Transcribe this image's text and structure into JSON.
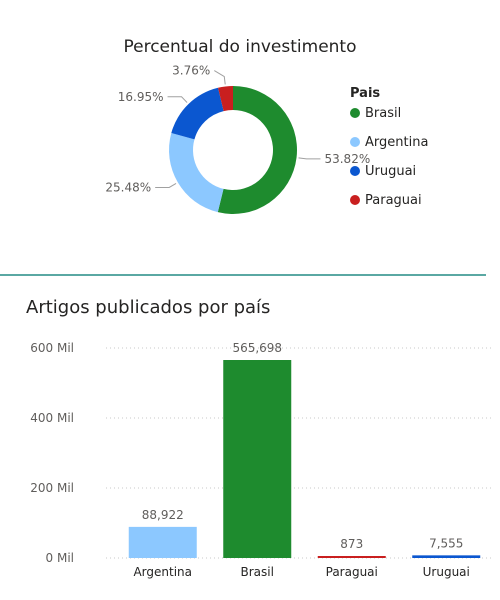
{
  "donut_title": "Percentual do investimento",
  "bar_title": "Artigos publicados por país",
  "legend_title": "Pais",
  "chart_data": [
    {
      "type": "pie",
      "title": "Percentual do investimento",
      "legend_title": "Pais",
      "legend_position": "right",
      "slices": [
        {
          "name": "Brasil",
          "value": 53.82,
          "label": "53.82%",
          "color": "#1e8b2e"
        },
        {
          "name": "Argentina",
          "value": 25.48,
          "label": "25.48%",
          "color": "#8cc8ff"
        },
        {
          "name": "Uruguai",
          "value": 16.95,
          "label": "16.95%",
          "color": "#0b57d0"
        },
        {
          "name": "Paraguai",
          "value": 3.76,
          "label": "3.76%",
          "color": "#c91f1f"
        }
      ]
    },
    {
      "type": "bar",
      "title": "Artigos publicados por país",
      "categories": [
        "Argentina",
        "Brasil",
        "Paraguai",
        "Uruguai"
      ],
      "values": [
        88922,
        565698,
        873,
        7555
      ],
      "value_labels": [
        "88,922",
        "565,698",
        "873",
        "7,555"
      ],
      "colors": [
        "#8cc8ff",
        "#1e8b2e",
        "#c91f1f",
        "#0b57d0"
      ],
      "yticks": [
        0,
        200000,
        400000,
        600000
      ],
      "ytick_labels": [
        "0 Mil",
        "200 Mil",
        "400 Mil",
        "600 Mil"
      ],
      "ylim": [
        0,
        600000
      ],
      "grid": true
    }
  ]
}
